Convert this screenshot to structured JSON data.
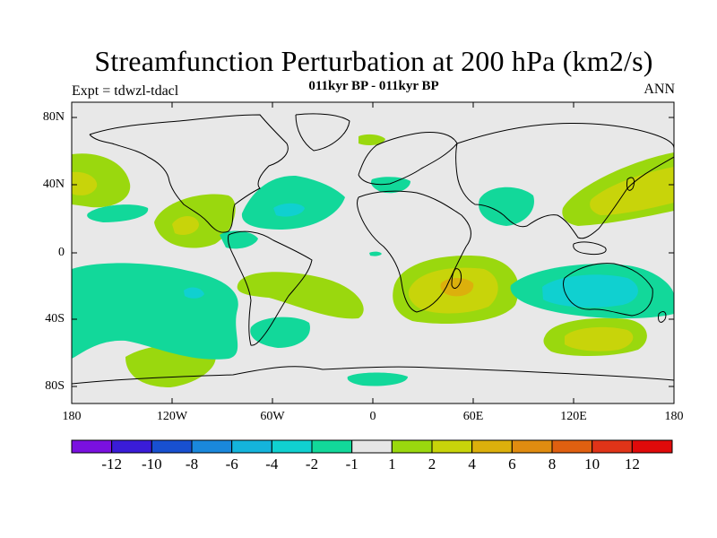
{
  "title": "Streamfunction Perturbation at 200 hPa (km2/s)",
  "left_subtitle": "Expt = tdwzl-tdacl",
  "center_subtitle": "011kyr BP - 011kyr BP",
  "right_subtitle": "ANN",
  "map": {
    "lat_labels": [
      "80N",
      "40N",
      "0",
      "40S",
      "80S"
    ],
    "lon_labels": [
      "180",
      "120W",
      "60W",
      "0",
      "60E",
      "120E",
      "180"
    ],
    "background_color": "#e8e8e8"
  },
  "colorbar": {
    "colors": [
      "#7a10e0",
      "#3a1cd8",
      "#1850d0",
      "#1a88dc",
      "#14b4dc",
      "#10d0d0",
      "#12d89a",
      "#e6e6e6",
      "#9ad80e",
      "#c8d40a",
      "#dcb00c",
      "#e08c10",
      "#e06010",
      "#e03418",
      "#e00a0a"
    ],
    "labels": [
      "-12",
      "-10",
      "-8",
      "-6",
      "-4",
      "-2",
      "-1",
      "1",
      "2",
      "4",
      "6",
      "8",
      "10",
      "12"
    ]
  }
}
